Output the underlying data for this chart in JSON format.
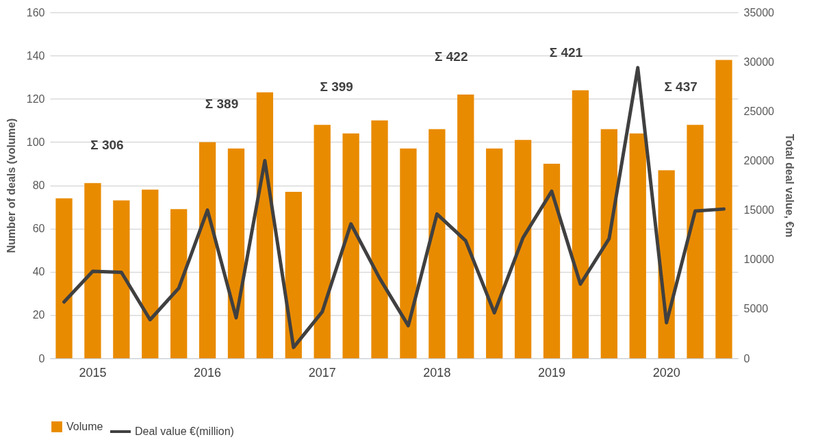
{
  "chart_data": {
    "type": "bar",
    "categories": [
      null,
      "2015",
      null,
      null,
      null,
      "2016",
      null,
      null,
      null,
      "2017",
      null,
      null,
      null,
      "2018",
      null,
      null,
      null,
      "2019",
      null,
      null,
      null,
      "2020",
      null,
      null
    ],
    "ylabel": "Number of deals (volume)",
    "y2label": "Total deal value, €m",
    "ylim": [
      0,
      160
    ],
    "yticks": [
      0,
      20,
      40,
      60,
      80,
      100,
      120,
      140,
      160
    ],
    "y2lim": [
      0,
      35000
    ],
    "y2ticks": [
      0,
      5000,
      10000,
      15000,
      20000,
      25000,
      30000,
      35000
    ],
    "series": [
      {
        "name": "Volume",
        "color": "#e98b00",
        "values": [
          74,
          81,
          73,
          78,
          69,
          100,
          97,
          123,
          77,
          108,
          104,
          110,
          97,
          106,
          122,
          97,
          101,
          90,
          124,
          106,
          104,
          87,
          108,
          138
        ]
      },
      {
        "name": "Deal value €(million)",
        "type": "line",
        "axis": "y2",
        "color": "#404040",
        "values": [
          5700,
          8800,
          8700,
          3900,
          7100,
          15000,
          4100,
          20000,
          1100,
          4700,
          13600,
          8100,
          3300,
          14600,
          11900,
          4600,
          12200,
          16900,
          7500,
          12100,
          29400,
          3600,
          14900,
          15100
        ]
      }
    ],
    "annotations": [
      "Σ 306",
      "Σ 389",
      "Σ 399",
      "Σ 422",
      "Σ 421",
      "Σ 437"
    ],
    "grid": "y",
    "legend": "bottom"
  }
}
